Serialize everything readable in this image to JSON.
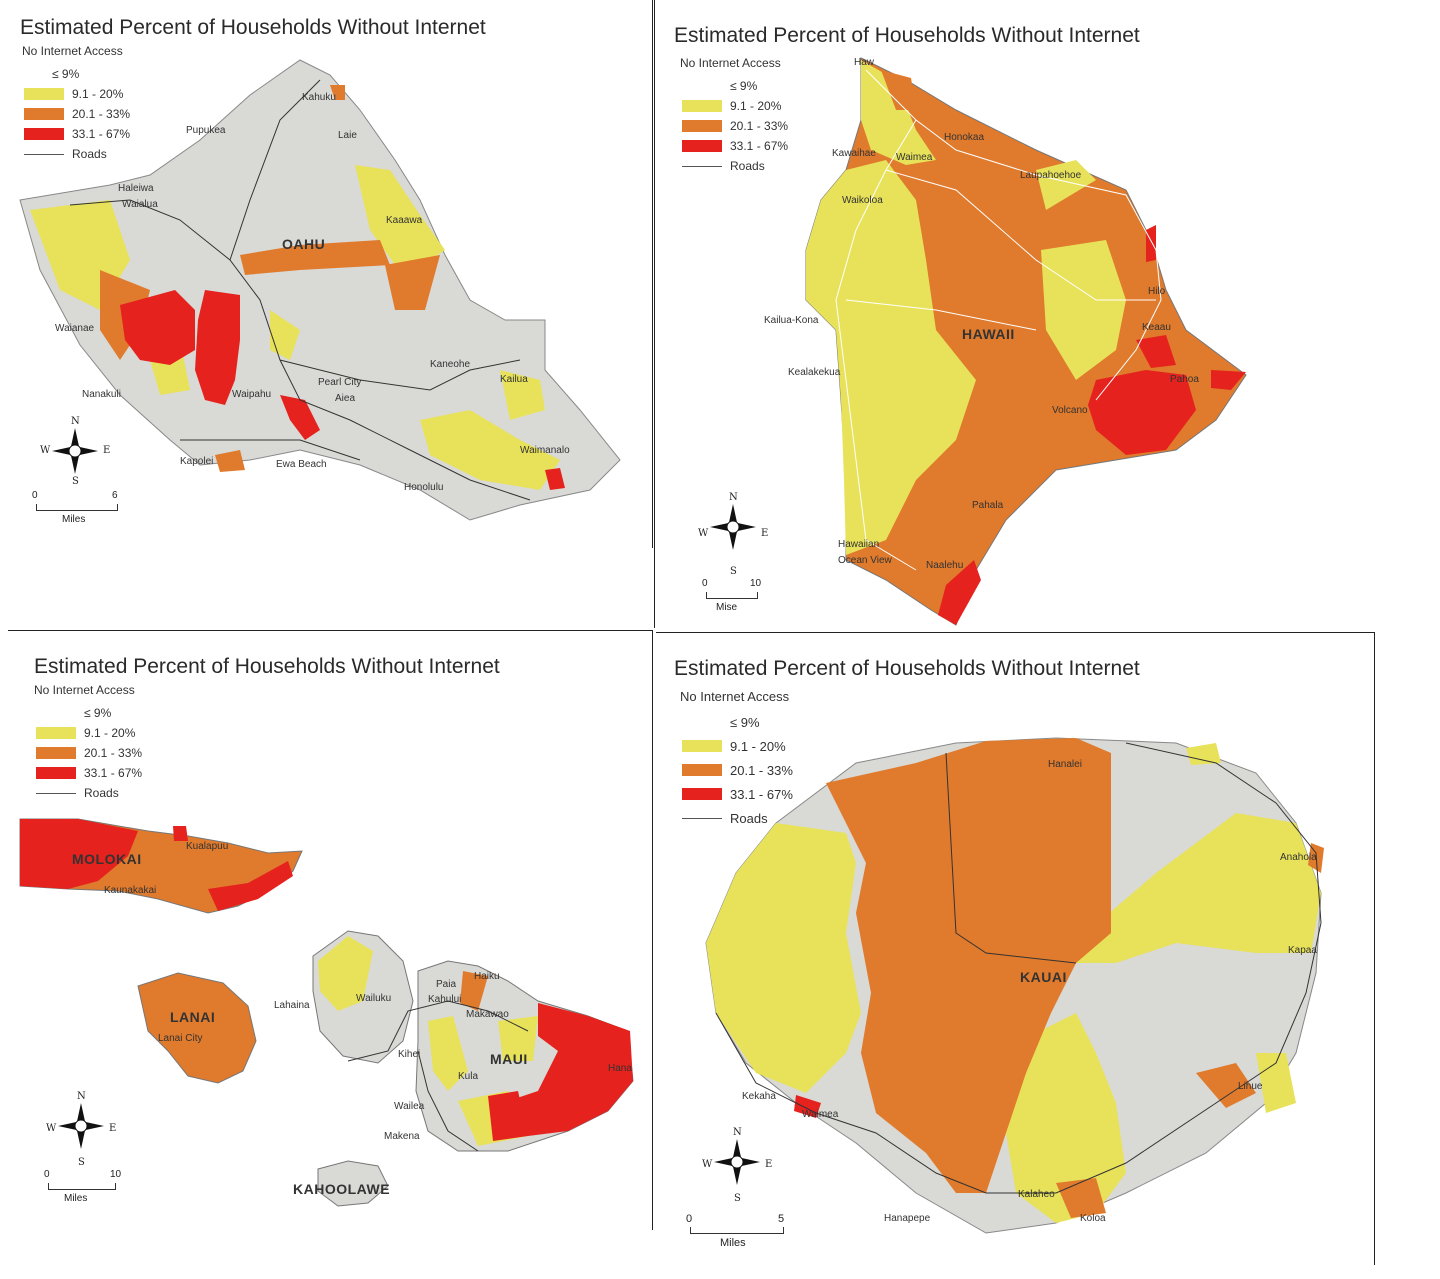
{
  "colors": {
    "le9": "#ffffff",
    "c9_20": "#e8e25a",
    "c20_33": "#e07a2c",
    "c33_67": "#e5221e",
    "terrain": "#d9d9d6",
    "roads": "#333333"
  },
  "panels": {
    "oahu": {
      "title": "Estimated Percent of Households Without Internet",
      "legend": {
        "heading": "No Internet Access",
        "le9": "≤ 9%",
        "c9_20": "9.1 - 20%",
        "c20_33": "20.1 - 33%",
        "c33_67": "33.1 - 67%",
        "roads": "Roads"
      },
      "island": "OAHU",
      "places": [
        "Kahuku",
        "Pupukea",
        "Laie",
        "Haleiwa",
        "Waialua",
        "Kaaawa",
        "Waianae",
        "Nanakuli",
        "Waipahu",
        "Pearl City",
        "Aiea",
        "Kaneohe",
        "Kailua",
        "Waimanalo",
        "Kapolei",
        "Ewa Beach",
        "Honolulu"
      ],
      "scale": {
        "start": "0",
        "end": "6",
        "unit": "Miles"
      },
      "compass": {
        "n": "N",
        "s": "S",
        "e": "E",
        "w": "W"
      }
    },
    "hawaii": {
      "title": "Estimated Percent of Households Without Internet",
      "legend": {
        "heading": "No Internet Access",
        "le9": "≤ 9%",
        "c9_20": "9.1 - 20%",
        "c20_33": "20.1 - 33%",
        "c33_67": "33.1 - 67%",
        "roads": "Roads"
      },
      "island": "HAWAII",
      "places": [
        "Haw",
        "Honokaa",
        "Kawaihae",
        "Waimea",
        "Laupahoehoe",
        "Waikoloa",
        "Hilo",
        "Kailua-Kona",
        "Keaau",
        "Kealakekua",
        "Pahoa",
        "Volcano",
        "Pahala",
        "Hawaiian Ocean View",
        "Naalehu"
      ],
      "scale": {
        "start": "0",
        "end": "10",
        "unit": "Mise"
      },
      "compass": {
        "n": "N",
        "s": "S",
        "e": "E",
        "w": "W"
      }
    },
    "maui": {
      "title": "Estimated Percent of Households Without Internet",
      "legend": {
        "heading": "No Internet Access",
        "le9": "≤ 9%",
        "c9_20": "9.1 - 20%",
        "c20_33": "20.1 - 33%",
        "c33_67": "33.1 - 67%",
        "roads": "Roads"
      },
      "islands": [
        "MOLOKAI",
        "LANAI",
        "MAUI",
        "KAHOOLAWE"
      ],
      "places": [
        "Kualapuu",
        "Kaunakakai",
        "Lanai City",
        "Lahaina",
        "Wailuku",
        "Paia",
        "Haiku",
        "Kahului",
        "Makawao",
        "Kihei",
        "Kula",
        "Hana",
        "Wailea",
        "Makena"
      ],
      "scale": {
        "start": "0",
        "end": "10",
        "unit": "Miles"
      },
      "compass": {
        "n": "N",
        "s": "S",
        "e": "E",
        "w": "W"
      }
    },
    "kauai": {
      "title": "Estimated Percent of Households Without Internet",
      "legend": {
        "heading": "No Internet Access",
        "le9": "≤ 9%",
        "c9_20": "9.1 - 20%",
        "c20_33": "20.1 - 33%",
        "c33_67": "33.1 - 67%",
        "roads": "Roads"
      },
      "island": "KAUAI",
      "places": [
        "Hanalei",
        "Anahola",
        "Kapaa",
        "Lihue",
        "Kekaha",
        "Waimea",
        "Kalaheo",
        "Hanapepe",
        "Koloa"
      ],
      "scale": {
        "start": "0",
        "end": "5",
        "unit": "Miles"
      },
      "compass": {
        "n": "N",
        "s": "S",
        "e": "E",
        "w": "W"
      }
    }
  }
}
